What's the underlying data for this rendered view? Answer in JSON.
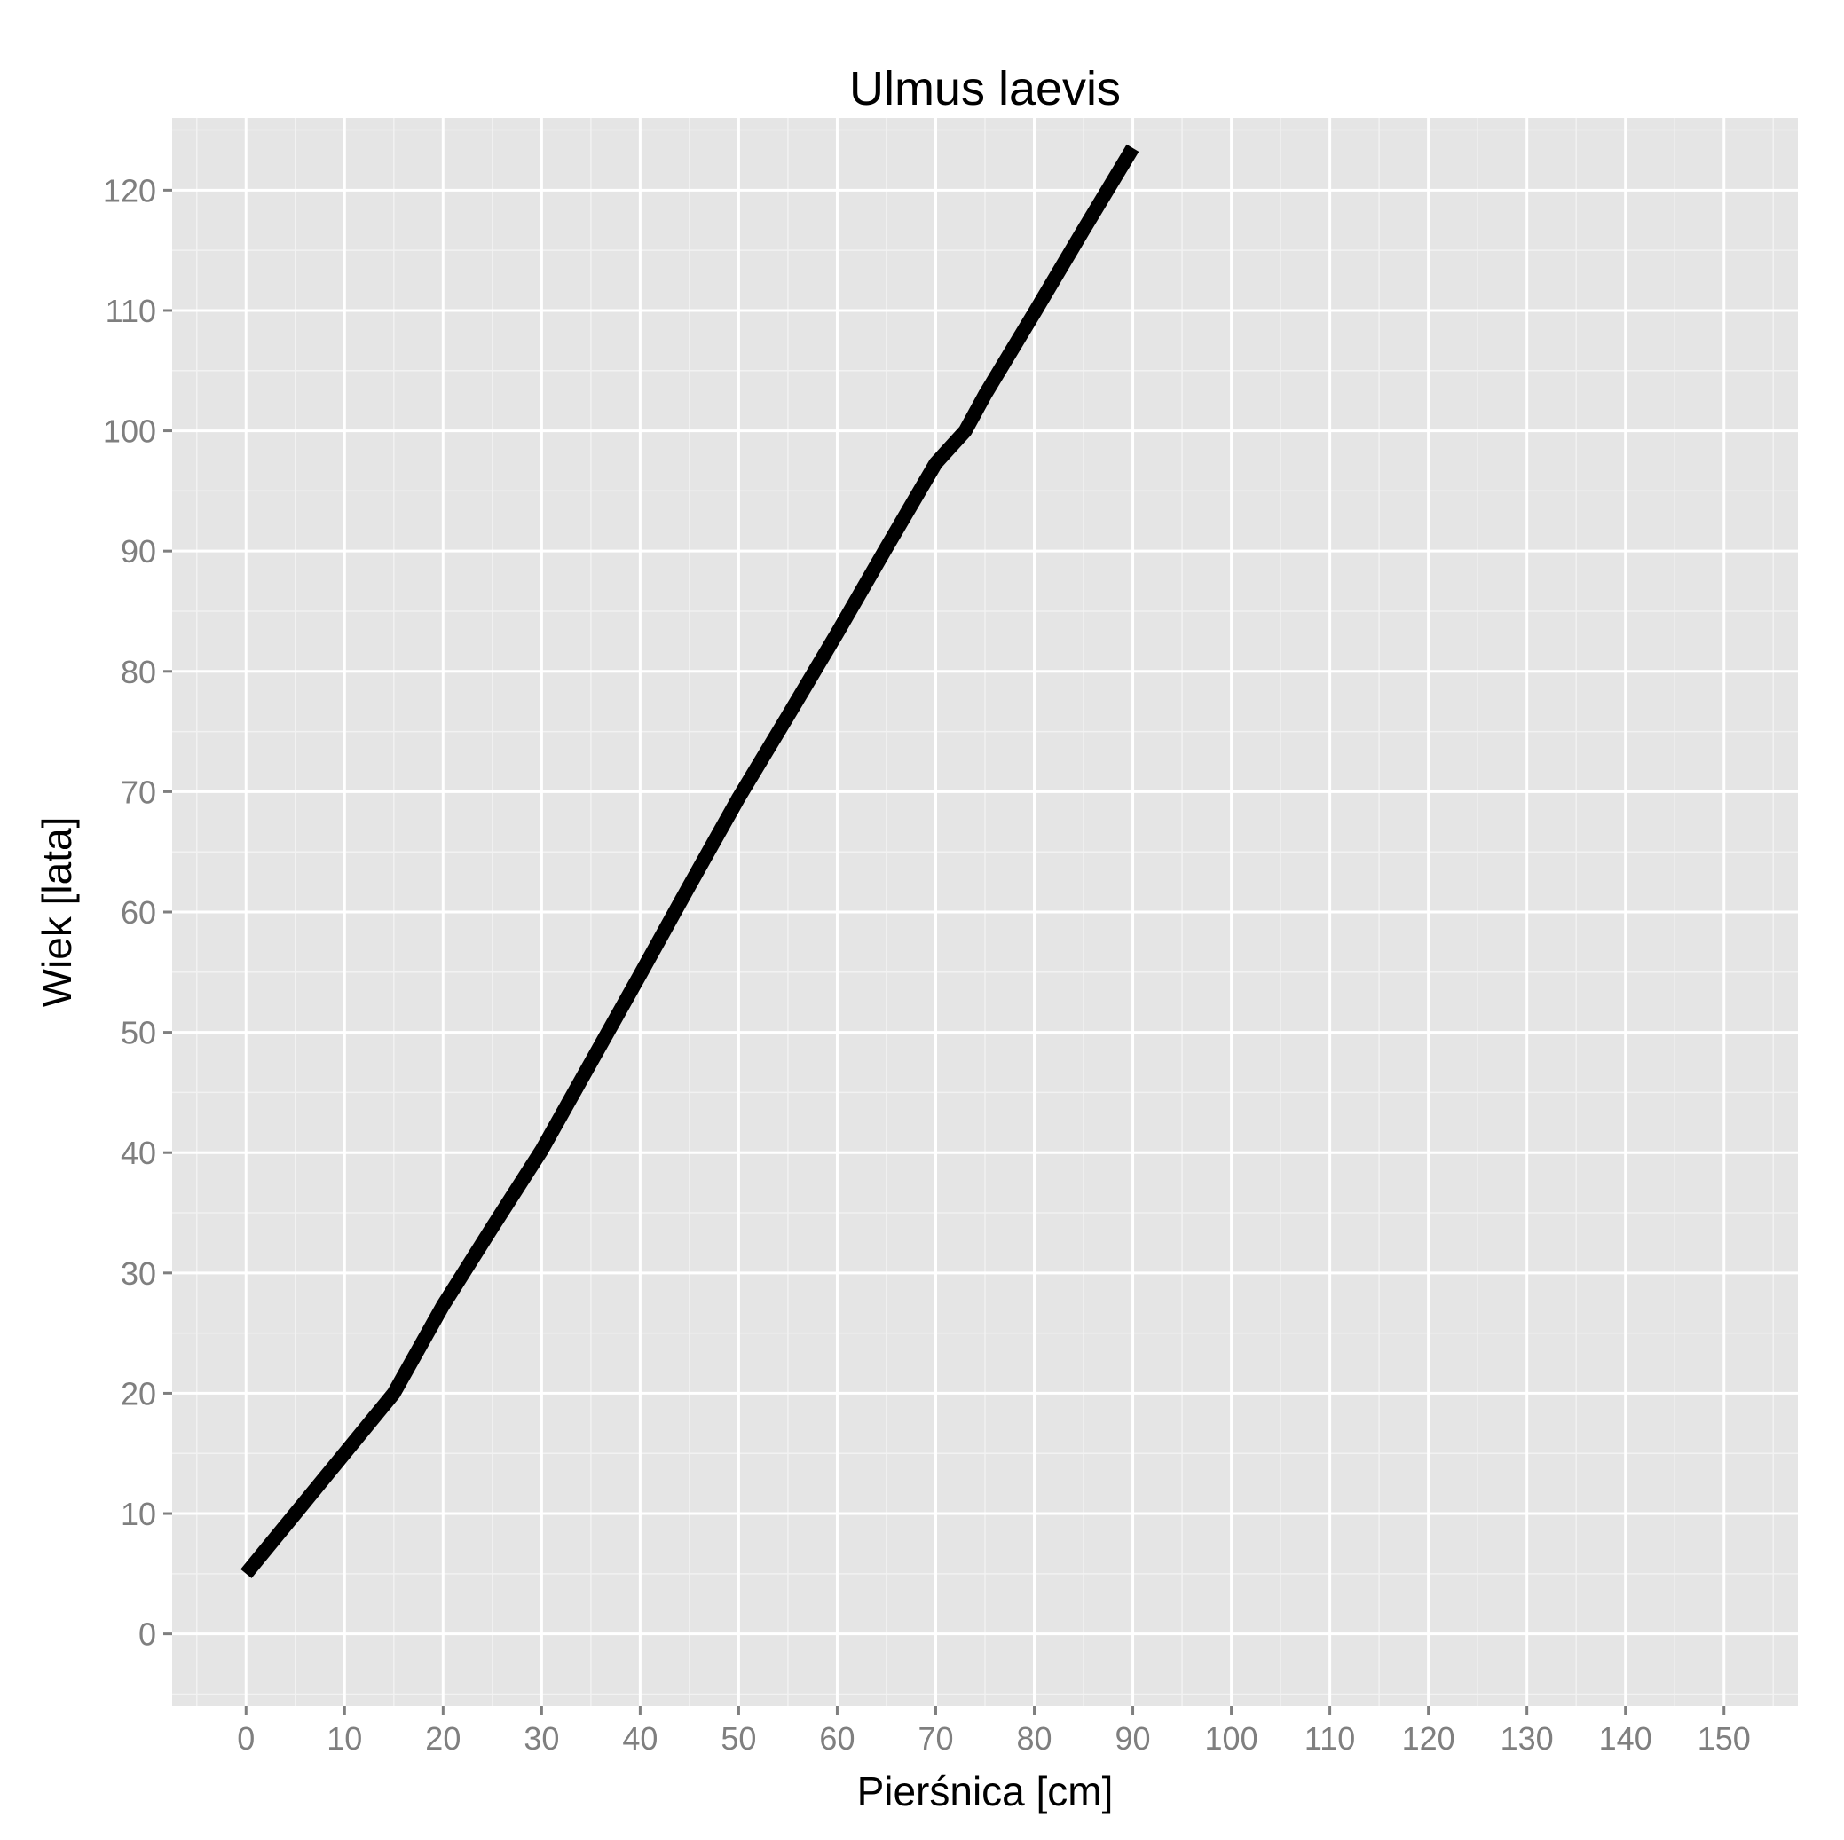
{
  "chart_data": {
    "type": "line",
    "title": "Ulmus laevis",
    "xlabel": "Pierśnica [cm]",
    "ylabel": "Wiek [lata]",
    "xlim": [
      -7.5,
      157.5
    ],
    "ylim": [
      -6,
      126
    ],
    "x_ticks": [
      "0",
      "10",
      "20",
      "30",
      "40",
      "50",
      "60",
      "70",
      "80",
      "90",
      "100",
      "110",
      "120",
      "130",
      "140",
      "150"
    ],
    "y_ticks": [
      "0",
      "10",
      "20",
      "30",
      "40",
      "50",
      "60",
      "70",
      "80",
      "90",
      "100",
      "110",
      "120"
    ],
    "grid": true,
    "legend": "none",
    "series": [
      {
        "color": "#000000",
        "x": [
          0,
          5,
          10,
          15,
          20,
          25,
          30,
          35,
          40,
          45,
          50,
          55,
          60,
          65,
          70,
          73,
          75,
          80,
          85,
          90
        ],
        "y": [
          5,
          10,
          15,
          20,
          27.3,
          33.8,
          40.2,
          47.5,
          54.8,
          62.2,
          69.5,
          76.3,
          83.2,
          90.3,
          97.3,
          100,
          103,
          109.8,
          116.7,
          123.5
        ]
      }
    ]
  }
}
